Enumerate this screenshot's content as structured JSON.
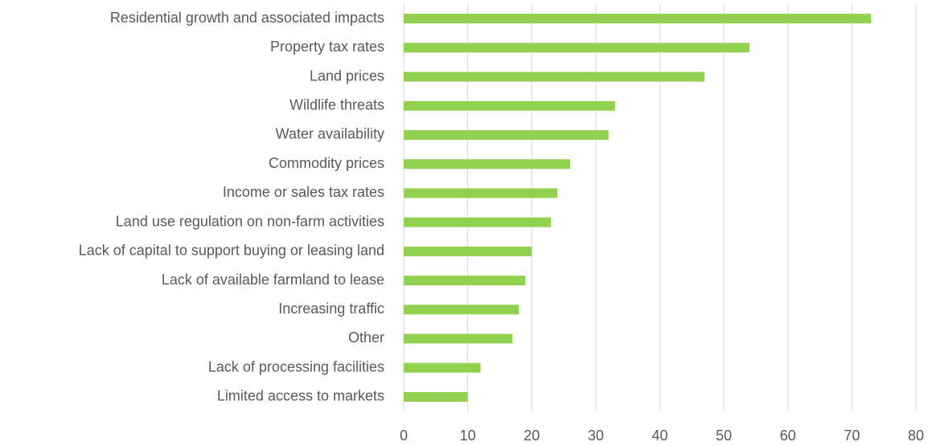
{
  "chart_data": {
    "type": "bar",
    "orientation": "horizontal",
    "categories": [
      "Residential growth and associated impacts",
      "Property tax rates",
      "Land prices",
      "Wildlife threats",
      "Water availability",
      "Commodity prices",
      "Income or sales tax rates",
      "Land use regulation on non-farm activities",
      "Lack of capital to support buying or leasing land",
      "Lack of available farmland to lease",
      "Increasing traffic",
      "Other",
      "Lack of processing facilities",
      "Limited access to markets"
    ],
    "values": [
      73,
      54,
      47,
      33,
      32,
      26,
      24,
      23,
      20,
      19,
      18,
      17,
      12,
      10
    ],
    "color": "#92d050",
    "xlim": [
      0,
      80
    ],
    "xticks": [
      0,
      10,
      20,
      30,
      40,
      50,
      60,
      70,
      80
    ],
    "grid": true
  }
}
